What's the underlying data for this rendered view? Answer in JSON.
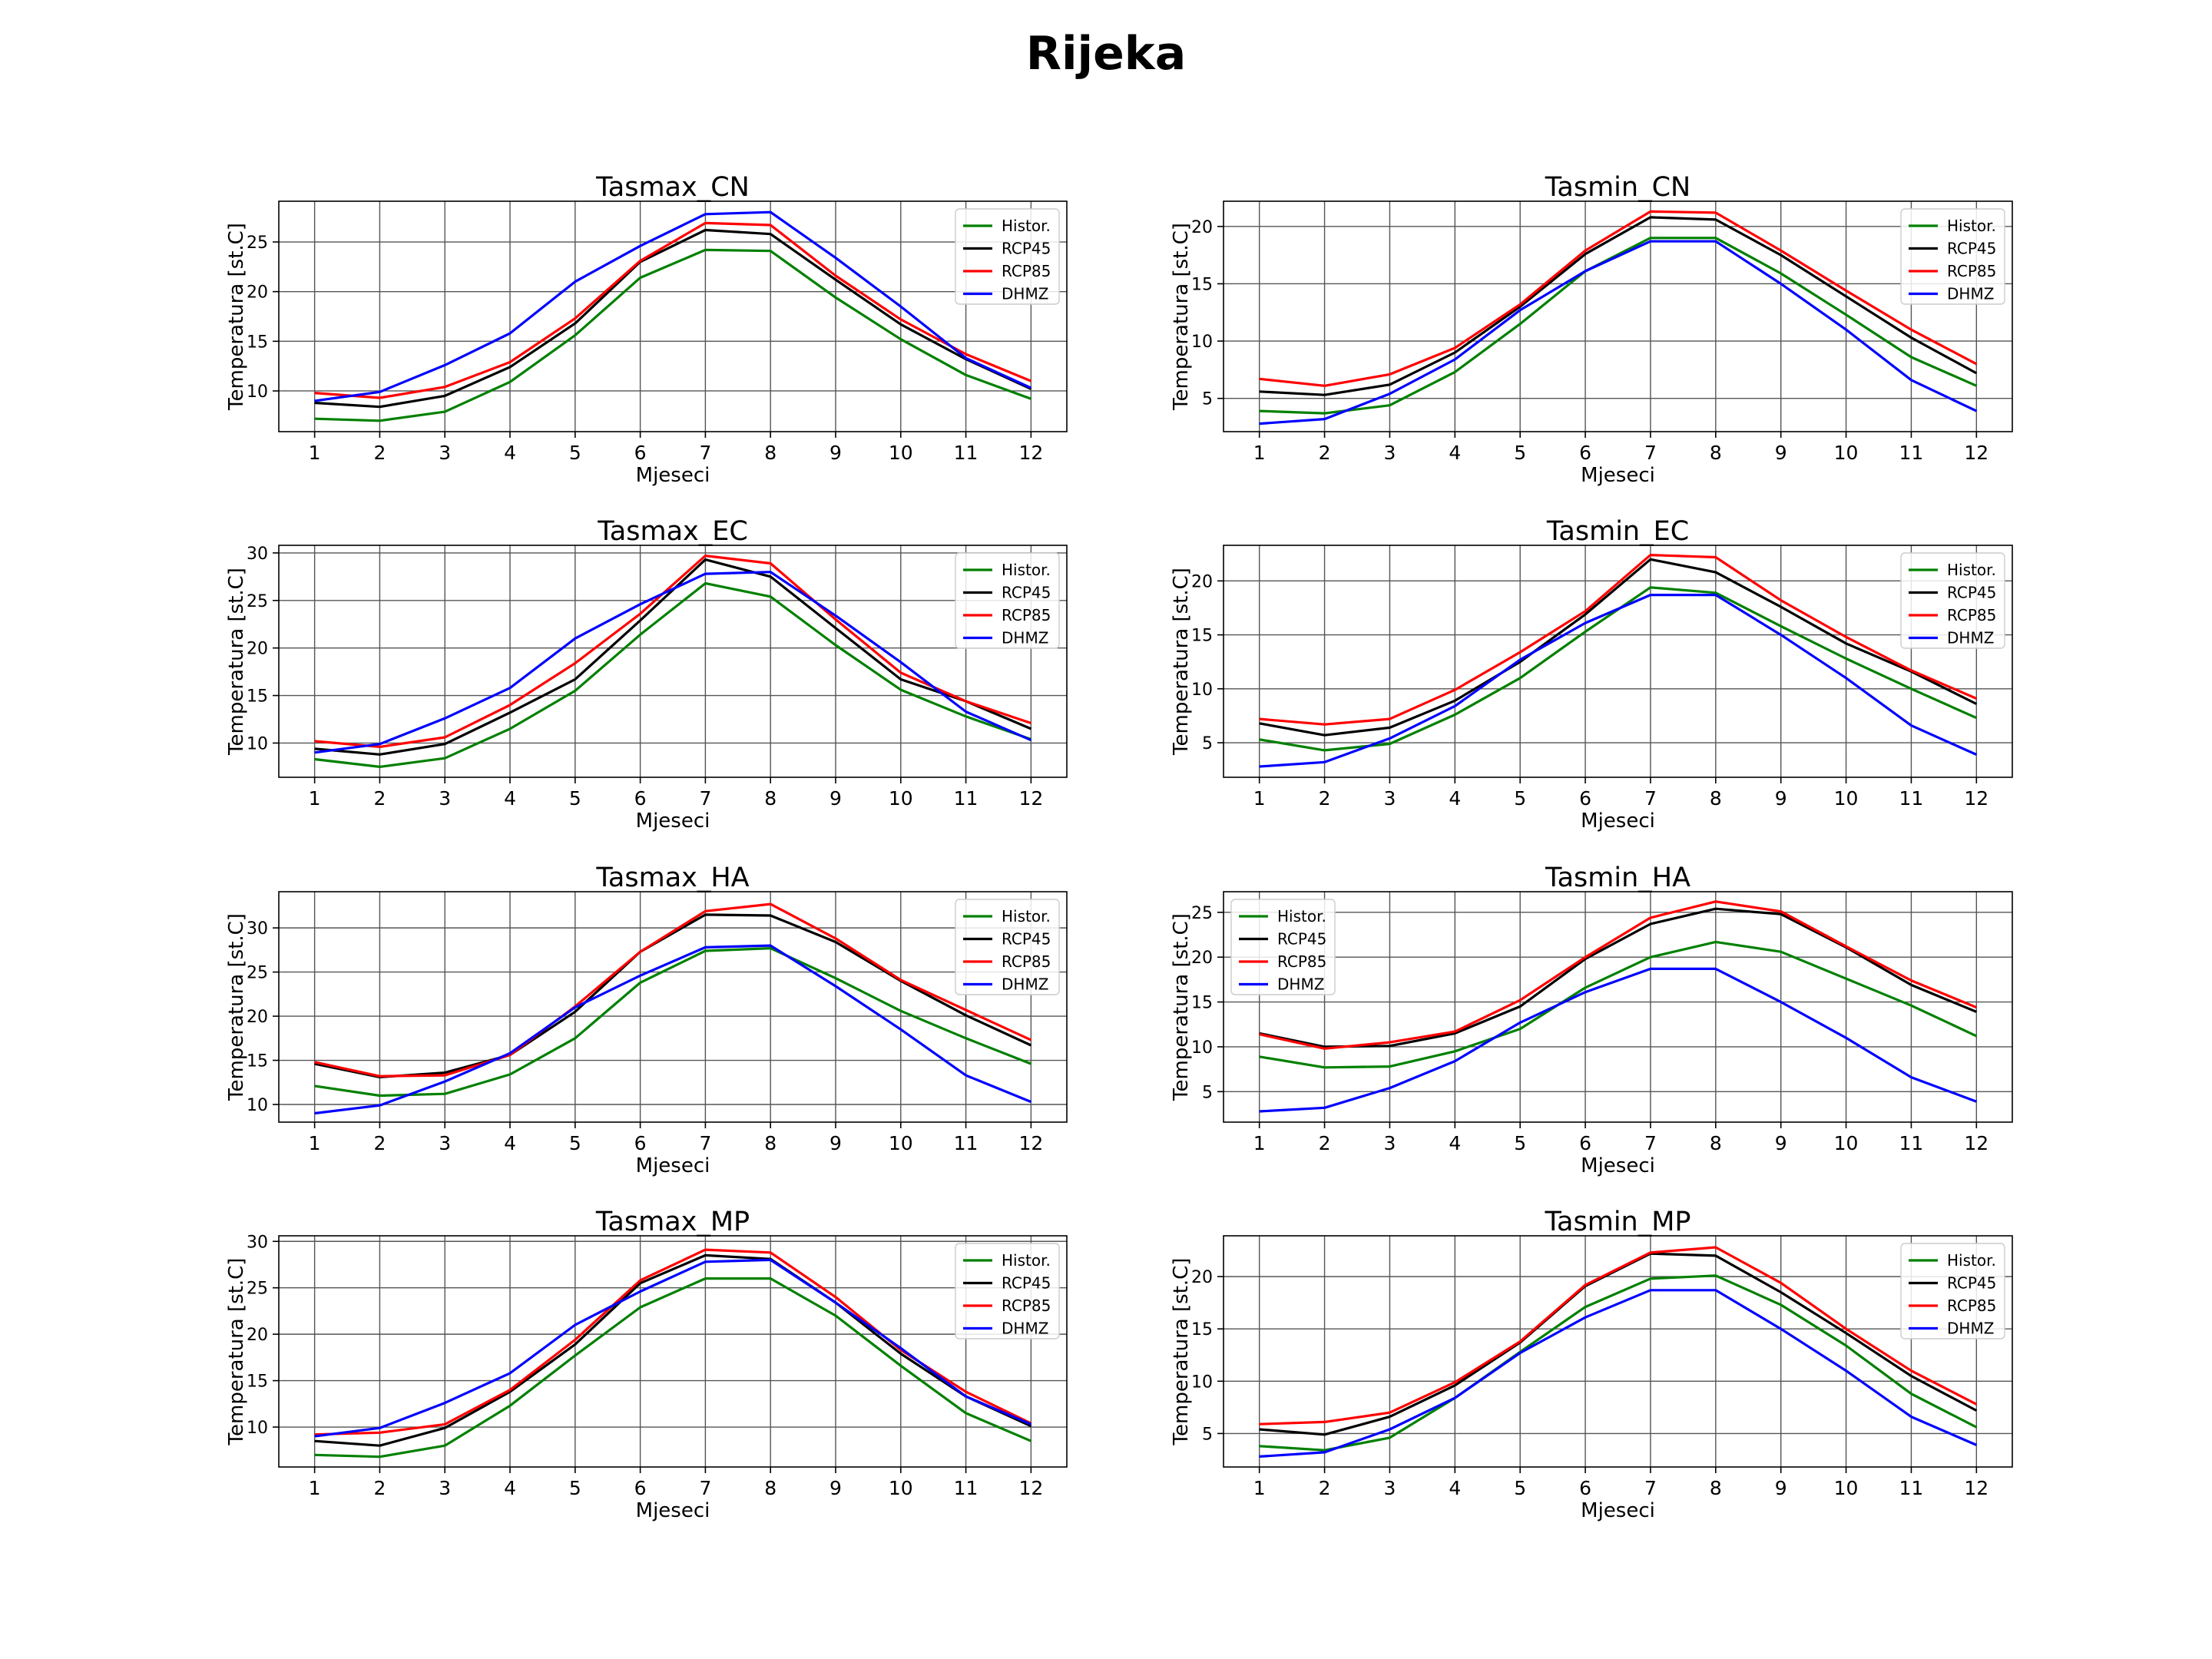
{
  "figure_title": "Rijeka",
  "colors": {
    "Histor.": "#008000",
    "RCP45": "#000000",
    "RCP85": "#ff0000",
    "DHMZ": "#0000ff"
  },
  "chart_data": [
    {
      "type": "line",
      "title": "Tasmax_CN",
      "xlabel": "Mjeseci",
      "ylabel": "Temperatura [st.C]",
      "x": [
        1,
        2,
        3,
        4,
        5,
        6,
        7,
        8,
        9,
        10,
        11,
        12
      ],
      "xlim": [
        0.45,
        12.55
      ],
      "ylim": [
        5.9,
        29.1
      ],
      "yticks": [
        10,
        15,
        20,
        25
      ],
      "grid": true,
      "legend": "upper right",
      "series": [
        {
          "name": "Histor.",
          "values": [
            7.2,
            7.0,
            7.9,
            10.9,
            15.6,
            21.4,
            24.2,
            24.1,
            19.4,
            15.2,
            11.6,
            9.2
          ]
        },
        {
          "name": "RCP45",
          "values": [
            8.8,
            8.4,
            9.5,
            12.4,
            16.8,
            23.0,
            26.2,
            25.8,
            21.2,
            16.7,
            13.2,
            10.2
          ]
        },
        {
          "name": "RCP85",
          "values": [
            9.8,
            9.3,
            10.4,
            12.9,
            17.3,
            23.1,
            26.9,
            26.7,
            21.6,
            17.2,
            13.7,
            11.0
          ]
        },
        {
          "name": "DHMZ",
          "values": [
            9.0,
            9.9,
            12.6,
            15.8,
            21.0,
            24.6,
            27.8,
            28.0,
            23.4,
            18.5,
            13.3,
            10.3
          ]
        }
      ]
    },
    {
      "type": "line",
      "title": "Tasmin_CN",
      "xlabel": "Mjeseci",
      "ylabel": "Temperatura [st.C]",
      "x": [
        1,
        2,
        3,
        4,
        5,
        6,
        7,
        8,
        9,
        10,
        11,
        12
      ],
      "xlim": [
        0.45,
        12.55
      ],
      "ylim": [
        2.1,
        22.2
      ],
      "yticks": [
        5,
        10,
        15,
        20
      ],
      "grid": true,
      "legend": "upper right",
      "series": [
        {
          "name": "Histor.",
          "values": [
            3.9,
            3.7,
            4.4,
            7.3,
            11.5,
            16.1,
            19.0,
            19.0,
            15.9,
            12.3,
            8.6,
            6.1
          ]
        },
        {
          "name": "RCP45",
          "values": [
            5.6,
            5.3,
            6.2,
            9.0,
            13.0,
            17.6,
            20.8,
            20.6,
            17.5,
            13.9,
            10.3,
            7.2
          ]
        },
        {
          "name": "RCP85",
          "values": [
            6.7,
            6.1,
            7.1,
            9.4,
            13.2,
            17.9,
            21.3,
            21.2,
            17.9,
            14.4,
            11.0,
            8.0
          ]
        },
        {
          "name": "DHMZ",
          "values": [
            2.8,
            3.2,
            5.4,
            8.4,
            12.7,
            16.1,
            18.7,
            18.7,
            15.0,
            11.0,
            6.6,
            3.9
          ]
        }
      ]
    },
    {
      "type": "line",
      "title": "Tasmax_EC",
      "xlabel": "Mjeseci",
      "ylabel": "Temperatura [st.C]",
      "x": [
        1,
        2,
        3,
        4,
        5,
        6,
        7,
        8,
        9,
        10,
        11,
        12
      ],
      "xlim": [
        0.45,
        12.55
      ],
      "ylim": [
        6.4,
        30.8
      ],
      "yticks": [
        10,
        15,
        20,
        25,
        30
      ],
      "grid": true,
      "legend": "upper right",
      "series": [
        {
          "name": "Histor.",
          "values": [
            8.3,
            7.5,
            8.4,
            11.5,
            15.5,
            21.4,
            26.8,
            25.4,
            20.3,
            15.6,
            12.8,
            10.4
          ]
        },
        {
          "name": "RCP45",
          "values": [
            9.4,
            8.8,
            9.9,
            13.2,
            16.7,
            22.9,
            29.3,
            27.5,
            22.1,
            16.7,
            14.4,
            11.5
          ]
        },
        {
          "name": "RCP85",
          "values": [
            10.2,
            9.6,
            10.6,
            14.0,
            18.4,
            23.6,
            29.7,
            28.9,
            23.0,
            17.4,
            14.4,
            12.1
          ]
        },
        {
          "name": "DHMZ",
          "values": [
            9.0,
            9.9,
            12.6,
            15.8,
            21.0,
            24.6,
            27.8,
            28.0,
            23.4,
            18.5,
            13.3,
            10.3
          ]
        }
      ]
    },
    {
      "type": "line",
      "title": "Tasmin_EC",
      "xlabel": "Mjeseci",
      "ylabel": "Temperatura [st.C]",
      "x": [
        1,
        2,
        3,
        4,
        5,
        6,
        7,
        8,
        9,
        10,
        11,
        12
      ],
      "xlim": [
        0.45,
        12.55
      ],
      "ylim": [
        1.8,
        23.3
      ],
      "yticks": [
        5,
        10,
        15,
        20
      ],
      "grid": true,
      "legend": "upper right",
      "series": [
        {
          "name": "Histor.",
          "values": [
            5.3,
            4.3,
            4.9,
            7.6,
            11.0,
            15.3,
            19.4,
            18.9,
            15.8,
            12.8,
            10.0,
            7.3
          ]
        },
        {
          "name": "RCP45",
          "values": [
            6.8,
            5.7,
            6.4,
            8.9,
            12.5,
            16.9,
            22.0,
            20.8,
            17.6,
            14.2,
            11.6,
            8.6
          ]
        },
        {
          "name": "RCP85",
          "values": [
            7.2,
            6.7,
            7.2,
            9.9,
            13.4,
            17.2,
            22.4,
            22.2,
            18.2,
            14.8,
            11.7,
            9.1
          ]
        },
        {
          "name": "DHMZ",
          "values": [
            2.8,
            3.2,
            5.4,
            8.4,
            12.7,
            16.1,
            18.7,
            18.7,
            15.0,
            11.0,
            6.6,
            3.9
          ]
        }
      ]
    },
    {
      "type": "line",
      "title": "Tasmax_HA",
      "xlabel": "Mjeseci",
      "ylabel": "Temperatura [st.C]",
      "x": [
        1,
        2,
        3,
        4,
        5,
        6,
        7,
        8,
        9,
        10,
        11,
        12
      ],
      "xlim": [
        0.45,
        12.55
      ],
      "ylim": [
        8.0,
        34.1
      ],
      "yticks": [
        10,
        15,
        20,
        25,
        30
      ],
      "grid": true,
      "legend": "upper right",
      "series": [
        {
          "name": "Histor.",
          "values": [
            12.1,
            11.0,
            11.2,
            13.4,
            17.5,
            23.8,
            27.4,
            27.7,
            24.3,
            20.6,
            17.5,
            14.6
          ]
        },
        {
          "name": "RCP45",
          "values": [
            14.6,
            13.1,
            13.6,
            15.6,
            20.5,
            27.3,
            31.5,
            31.4,
            28.4,
            24.0,
            20.1,
            16.7
          ]
        },
        {
          "name": "RCP85",
          "values": [
            14.8,
            13.2,
            13.3,
            15.6,
            21.1,
            27.3,
            31.9,
            32.7,
            28.8,
            24.1,
            20.7,
            17.3
          ]
        },
        {
          "name": "DHMZ",
          "values": [
            9.0,
            9.9,
            12.6,
            15.8,
            21.0,
            24.6,
            27.8,
            28.0,
            23.4,
            18.5,
            13.3,
            10.3
          ]
        }
      ]
    },
    {
      "type": "line",
      "title": "Tasmin_HA",
      "xlabel": "Mjeseci",
      "ylabel": "Temperatura [st.C]",
      "x": [
        1,
        2,
        3,
        4,
        5,
        6,
        7,
        8,
        9,
        10,
        11,
        12
      ],
      "xlim": [
        0.45,
        12.55
      ],
      "ylim": [
        1.6,
        27.3
      ],
      "yticks": [
        5,
        10,
        15,
        20,
        25
      ],
      "grid": true,
      "legend": "upper left",
      "series": [
        {
          "name": "Histor.",
          "values": [
            8.9,
            7.7,
            7.8,
            9.5,
            12.0,
            16.6,
            20.0,
            21.7,
            20.6,
            17.6,
            14.6,
            11.2
          ]
        },
        {
          "name": "RCP45",
          "values": [
            11.5,
            10.0,
            10.1,
            11.5,
            14.5,
            19.8,
            23.7,
            25.4,
            24.8,
            21.1,
            16.9,
            13.9
          ]
        },
        {
          "name": "RCP85",
          "values": [
            11.4,
            9.8,
            10.5,
            11.7,
            15.2,
            20.0,
            24.4,
            26.2,
            25.1,
            21.2,
            17.4,
            14.4
          ]
        },
        {
          "name": "DHMZ",
          "values": [
            2.8,
            3.2,
            5.4,
            8.4,
            12.7,
            16.1,
            18.7,
            18.7,
            15.0,
            11.0,
            6.6,
            3.9
          ]
        }
      ]
    },
    {
      "type": "line",
      "title": "Tasmax_MP",
      "xlabel": "Mjeseci",
      "ylabel": "Temperatura [st.C]",
      "x": [
        1,
        2,
        3,
        4,
        5,
        6,
        7,
        8,
        9,
        10,
        11,
        12
      ],
      "xlim": [
        0.45,
        12.55
      ],
      "ylim": [
        5.7,
        30.6
      ],
      "yticks": [
        10,
        15,
        20,
        25,
        30
      ],
      "grid": true,
      "legend": "upper right",
      "series": [
        {
          "name": "Histor.",
          "values": [
            7.0,
            6.8,
            8.0,
            12.3,
            17.7,
            22.9,
            26.0,
            26.0,
            22.0,
            16.6,
            11.5,
            8.5
          ]
        },
        {
          "name": "RCP45",
          "values": [
            8.5,
            8.0,
            9.9,
            13.8,
            18.9,
            25.5,
            28.5,
            28.1,
            23.4,
            17.9,
            13.3,
            10.1
          ]
        },
        {
          "name": "RCP85",
          "values": [
            9.2,
            9.4,
            10.3,
            14.0,
            19.4,
            25.8,
            29.1,
            28.8,
            24.0,
            18.3,
            13.8,
            10.4
          ]
        },
        {
          "name": "DHMZ",
          "values": [
            9.0,
            9.9,
            12.6,
            15.8,
            21.0,
            24.6,
            27.8,
            28.0,
            23.4,
            18.5,
            13.3,
            10.3
          ]
        }
      ]
    },
    {
      "type": "line",
      "title": "Tasmin_MP",
      "xlabel": "Mjeseci",
      "ylabel": "Temperatura [st.C]",
      "x": [
        1,
        2,
        3,
        4,
        5,
        6,
        7,
        8,
        9,
        10,
        11,
        12
      ],
      "xlim": [
        0.45,
        12.55
      ],
      "ylim": [
        1.8,
        23.9
      ],
      "yticks": [
        5,
        10,
        15,
        20
      ],
      "grid": true,
      "legend": "upper right",
      "series": [
        {
          "name": "Histor.",
          "values": [
            3.8,
            3.4,
            4.6,
            8.4,
            12.8,
            17.1,
            19.8,
            20.1,
            17.3,
            13.4,
            8.8,
            5.6
          ]
        },
        {
          "name": "RCP45",
          "values": [
            5.4,
            4.9,
            6.6,
            9.6,
            13.7,
            19.1,
            22.2,
            22.0,
            18.5,
            14.6,
            10.5,
            7.2
          ]
        },
        {
          "name": "RCP85",
          "values": [
            5.9,
            6.1,
            7.0,
            9.9,
            13.8,
            19.2,
            22.3,
            22.8,
            19.4,
            15.0,
            11.0,
            7.8
          ]
        },
        {
          "name": "DHMZ",
          "values": [
            2.8,
            3.2,
            5.4,
            8.4,
            12.7,
            16.1,
            18.7,
            18.7,
            15.0,
            11.0,
            6.6,
            3.9
          ]
        }
      ]
    }
  ]
}
